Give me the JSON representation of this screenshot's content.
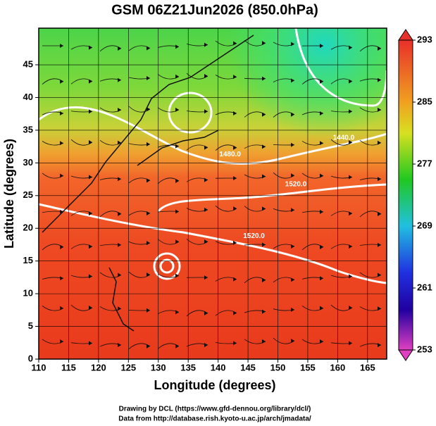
{
  "title": "GSM 06Z21Jun2026 (850.0hPa)",
  "x_axis": {
    "label": "Longitude (degrees)",
    "lim": [
      110,
      168.2
    ],
    "ticks": [
      110,
      115,
      120,
      125,
      130,
      135,
      140,
      145,
      150,
      155,
      160,
      165
    ]
  },
  "y_axis": {
    "label": "Latitude  (degrees)",
    "lim": [
      0,
      50.6
    ],
    "ticks": [
      0,
      5,
      10,
      15,
      20,
      25,
      30,
      35,
      40,
      45
    ]
  },
  "colorbar": {
    "lim": [
      253,
      293
    ],
    "ticks": [
      293,
      285,
      277,
      269,
      261,
      253
    ]
  },
  "contour_labels": [
    {
      "text": "1440.0",
      "lon": 161,
      "lat": 33.8
    },
    {
      "text": "1480.0",
      "lon": 142,
      "lat": 31.3
    },
    {
      "text": "1520.0",
      "lon": 153,
      "lat": 26.7
    },
    {
      "text": "1520.0",
      "lon": 146,
      "lat": 18.8
    }
  ],
  "credits": [
    "Drawing by DCL (https://www.gfd-dennou.org/library/dcl/)",
    "Data from http://database.rish.kyoto-u.ac.jp/arch/jmadata/"
  ]
}
